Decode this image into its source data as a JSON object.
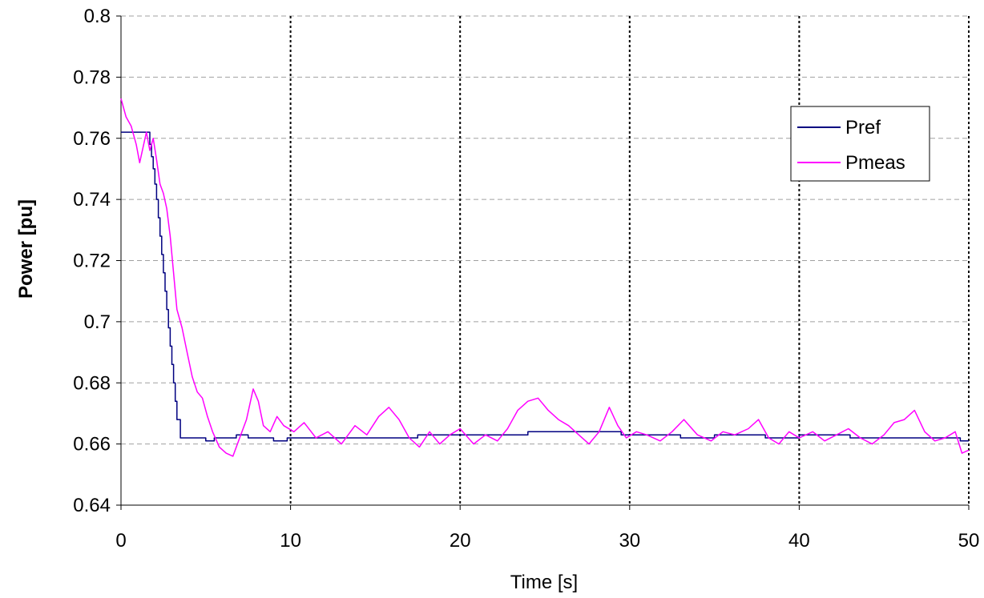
{
  "chart_data": {
    "type": "line",
    "xlabel": "Time [s]",
    "ylabel": "Power [pu]",
    "xlim": [
      0,
      50
    ],
    "ylim": [
      0.64,
      0.8
    ],
    "x_ticks": [
      0,
      10,
      20,
      30,
      40,
      50
    ],
    "y_ticks": [
      0.64,
      0.66,
      0.68,
      0.7,
      0.72,
      0.74,
      0.76,
      0.78,
      0.8
    ],
    "x_tick_labels": [
      "0",
      "10",
      "20",
      "30",
      "40",
      "50"
    ],
    "y_tick_labels": [
      "0.64",
      "0.66",
      "0.68",
      "0.7",
      "0.72",
      "0.74",
      "0.76",
      "0.78",
      "0.8"
    ],
    "grid": {
      "horizontal": "dashed",
      "vertical": "dotted"
    },
    "legend_position": "top-right",
    "series": [
      {
        "name": "Pref",
        "color": "#000080",
        "style": "step",
        "points": [
          [
            0,
            0.762
          ],
          [
            1.5,
            0.762
          ],
          [
            1.7,
            0.758
          ],
          [
            1.8,
            0.754
          ],
          [
            1.9,
            0.75
          ],
          [
            2.0,
            0.745
          ],
          [
            2.1,
            0.74
          ],
          [
            2.2,
            0.734
          ],
          [
            2.3,
            0.728
          ],
          [
            2.4,
            0.722
          ],
          [
            2.5,
            0.716
          ],
          [
            2.6,
            0.71
          ],
          [
            2.7,
            0.704
          ],
          [
            2.8,
            0.698
          ],
          [
            2.9,
            0.692
          ],
          [
            3.0,
            0.686
          ],
          [
            3.1,
            0.68
          ],
          [
            3.2,
            0.674
          ],
          [
            3.3,
            0.668
          ],
          [
            3.5,
            0.662
          ],
          [
            4.8,
            0.662
          ],
          [
            5.0,
            0.661
          ],
          [
            5.5,
            0.662
          ],
          [
            6.5,
            0.662
          ],
          [
            6.8,
            0.663
          ],
          [
            7.5,
            0.662
          ],
          [
            8.5,
            0.662
          ],
          [
            9.0,
            0.661
          ],
          [
            9.8,
            0.662
          ],
          [
            12,
            0.662
          ],
          [
            15,
            0.662
          ],
          [
            17.5,
            0.663
          ],
          [
            22,
            0.663
          ],
          [
            24,
            0.664
          ],
          [
            28,
            0.664
          ],
          [
            29.5,
            0.663
          ],
          [
            33,
            0.662
          ],
          [
            35,
            0.663
          ],
          [
            38,
            0.662
          ],
          [
            40,
            0.663
          ],
          [
            43,
            0.662
          ],
          [
            47,
            0.662
          ],
          [
            49.5,
            0.661
          ],
          [
            50,
            0.661
          ]
        ]
      },
      {
        "name": "Pmeas",
        "color": "#FF00FF",
        "style": "line",
        "points": [
          [
            0,
            0.773
          ],
          [
            0.3,
            0.767
          ],
          [
            0.6,
            0.764
          ],
          [
            0.9,
            0.758
          ],
          [
            1.1,
            0.752
          ],
          [
            1.3,
            0.757
          ],
          [
            1.5,
            0.762
          ],
          [
            1.7,
            0.756
          ],
          [
            1.9,
            0.76
          ],
          [
            2.1,
            0.753
          ],
          [
            2.3,
            0.745
          ],
          [
            2.5,
            0.742
          ],
          [
            2.7,
            0.737
          ],
          [
            2.9,
            0.728
          ],
          [
            3.1,
            0.716
          ],
          [
            3.3,
            0.704
          ],
          [
            3.6,
            0.698
          ],
          [
            3.9,
            0.69
          ],
          [
            4.2,
            0.682
          ],
          [
            4.5,
            0.677
          ],
          [
            4.8,
            0.675
          ],
          [
            5.1,
            0.669
          ],
          [
            5.4,
            0.664
          ],
          [
            5.8,
            0.659
          ],
          [
            6.2,
            0.657
          ],
          [
            6.6,
            0.656
          ],
          [
            7.0,
            0.662
          ],
          [
            7.4,
            0.668
          ],
          [
            7.8,
            0.678
          ],
          [
            8.1,
            0.674
          ],
          [
            8.4,
            0.666
          ],
          [
            8.8,
            0.664
          ],
          [
            9.2,
            0.669
          ],
          [
            9.6,
            0.666
          ],
          [
            10.2,
            0.664
          ],
          [
            10.8,
            0.667
          ],
          [
            11.5,
            0.662
          ],
          [
            12.2,
            0.664
          ],
          [
            13.0,
            0.66
          ],
          [
            13.8,
            0.666
          ],
          [
            14.5,
            0.663
          ],
          [
            15.2,
            0.669
          ],
          [
            15.8,
            0.672
          ],
          [
            16.4,
            0.668
          ],
          [
            17.0,
            0.662
          ],
          [
            17.6,
            0.659
          ],
          [
            18.2,
            0.664
          ],
          [
            18.8,
            0.66
          ],
          [
            19.4,
            0.663
          ],
          [
            20.0,
            0.665
          ],
          [
            20.8,
            0.66
          ],
          [
            21.5,
            0.663
          ],
          [
            22.2,
            0.661
          ],
          [
            22.8,
            0.665
          ],
          [
            23.4,
            0.671
          ],
          [
            24.0,
            0.674
          ],
          [
            24.6,
            0.675
          ],
          [
            25.2,
            0.671
          ],
          [
            25.8,
            0.668
          ],
          [
            26.4,
            0.666
          ],
          [
            27.0,
            0.663
          ],
          [
            27.6,
            0.66
          ],
          [
            28.2,
            0.664
          ],
          [
            28.8,
            0.672
          ],
          [
            29.3,
            0.666
          ],
          [
            29.8,
            0.662
          ],
          [
            30.4,
            0.664
          ],
          [
            31.0,
            0.663
          ],
          [
            31.8,
            0.661
          ],
          [
            32.5,
            0.664
          ],
          [
            33.2,
            0.668
          ],
          [
            34.0,
            0.663
          ],
          [
            34.8,
            0.661
          ],
          [
            35.5,
            0.664
          ],
          [
            36.2,
            0.663
          ],
          [
            37.0,
            0.665
          ],
          [
            37.6,
            0.668
          ],
          [
            38.2,
            0.662
          ],
          [
            38.8,
            0.66
          ],
          [
            39.4,
            0.664
          ],
          [
            40.0,
            0.662
          ],
          [
            40.8,
            0.664
          ],
          [
            41.5,
            0.661
          ],
          [
            42.2,
            0.663
          ],
          [
            42.9,
            0.665
          ],
          [
            43.6,
            0.662
          ],
          [
            44.3,
            0.66
          ],
          [
            45.0,
            0.663
          ],
          [
            45.6,
            0.667
          ],
          [
            46.2,
            0.668
          ],
          [
            46.8,
            0.671
          ],
          [
            47.4,
            0.664
          ],
          [
            48.0,
            0.661
          ],
          [
            48.6,
            0.662
          ],
          [
            49.2,
            0.664
          ],
          [
            49.6,
            0.657
          ],
          [
            50.0,
            0.658
          ]
        ]
      }
    ]
  }
}
